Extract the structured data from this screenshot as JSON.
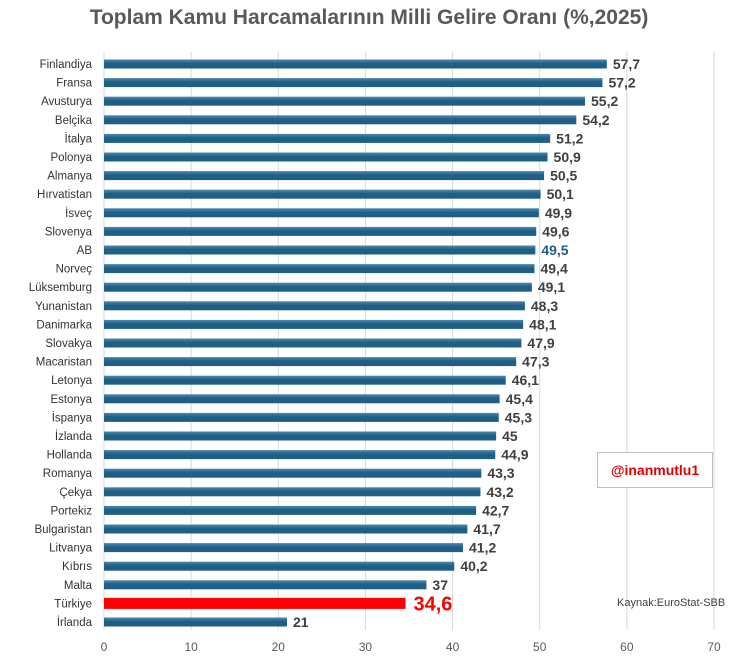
{
  "chart_data": {
    "type": "bar",
    "orientation": "horizontal",
    "title": "Toplam Kamu Harcamalarının Milli Gelire Oranı (%,2025)",
    "categories": [
      "Finlandiya",
      "Fransa",
      "Avusturya",
      "Belçika",
      "İtalya",
      "Polonya",
      "Almanya",
      "Hırvatistan",
      "İsveç",
      "Slovenya",
      "AB",
      "Norveç",
      "Lüksemburg",
      "Yunanistan",
      "Danimarka",
      "Slovakya",
      "Macaristan",
      "Letonya",
      "Estonya",
      "İspanya",
      "İzlanda",
      "Hollanda",
      "Romanya",
      "Çekya",
      "Portekiz",
      "Bulgaristan",
      "Litvanya",
      "Kıbrıs",
      "Malta",
      "Türkiye",
      "İrlanda"
    ],
    "values": [
      57.7,
      57.2,
      55.2,
      54.2,
      51.2,
      50.9,
      50.5,
      50.1,
      49.9,
      49.6,
      49.5,
      49.4,
      49.1,
      48.3,
      48.1,
      47.9,
      47.3,
      46.1,
      45.4,
      45.3,
      45,
      44.9,
      43.3,
      43.2,
      42.7,
      41.7,
      41.2,
      40.2,
      37,
      34.6,
      21
    ],
    "value_labels": [
      "57,7",
      "57,2",
      "55,2",
      "54,2",
      "51,2",
      "50,9",
      "50,5",
      "50,1",
      "49,9",
      "49,6",
      "49,5",
      "49,4",
      "49,1",
      "48,3",
      "48,1",
      "47,9",
      "47,3",
      "46,1",
      "45,4",
      "45,3",
      "45",
      "44,9",
      "43,3",
      "43,2",
      "42,7",
      "41,7",
      "41,2",
      "40,2",
      "37",
      "34,6",
      "21"
    ],
    "xlim": [
      0,
      70
    ],
    "xticks": [
      0,
      10,
      20,
      30,
      40,
      50,
      60,
      70
    ],
    "grid": true,
    "highlight": {
      "AB": "eu",
      "Türkiye": "turkey"
    },
    "xlabel": "",
    "ylabel": ""
  },
  "colors": {
    "bar": "#1f5f85",
    "bar_top": "#4b89ad",
    "turkey": "#ff0000",
    "eu_label": "#1f5f85",
    "label": "#404040",
    "axis_text": "#595959",
    "grid": "#d9d9d9"
  },
  "annotations": {
    "watermark": "@inanmutlu1",
    "source": "Kaynak:EuroStat-SBB"
  }
}
